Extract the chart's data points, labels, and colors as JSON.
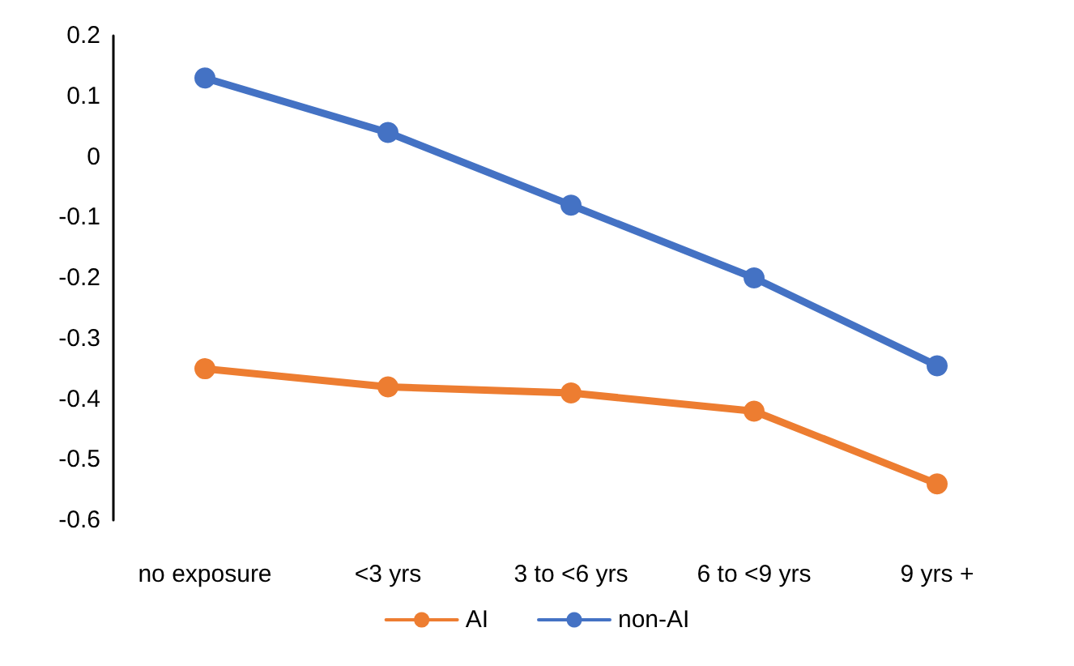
{
  "chart_data": {
    "type": "line",
    "categories": [
      "no exposure",
      "<3 yrs",
      "3 to <6 yrs",
      "6 to <9 yrs",
      "9 yrs +"
    ],
    "series": [
      {
        "name": "AI",
        "color": "#ed7d31",
        "values": [
          -0.35,
          -0.38,
          -0.39,
          -0.42,
          -0.54
        ]
      },
      {
        "name": "non-AI",
        "color": "#4472c4",
        "values": [
          0.13,
          0.04,
          -0.08,
          -0.2,
          -0.345
        ]
      }
    ],
    "ylim": [
      -0.6,
      0.2
    ],
    "yticks": [
      -0.6,
      -0.5,
      -0.4,
      -0.3,
      -0.2,
      -0.1,
      0,
      0.1,
      0.2
    ],
    "grid": false,
    "legend": "bottom",
    "marker": "circle",
    "line_style": "solid"
  }
}
